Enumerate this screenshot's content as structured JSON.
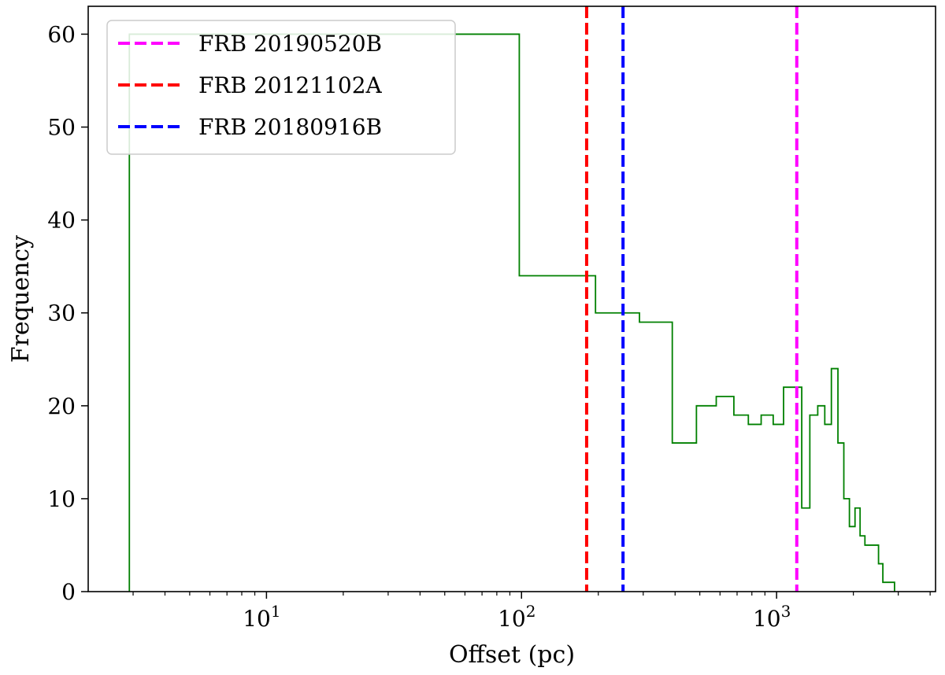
{
  "chart_data": {
    "type": "histogram",
    "xlabel": "Offset (pc)",
    "ylabel": "Frequency",
    "xscale": "log",
    "xlim": [
      2.0,
      4200
    ],
    "ylim": [
      0,
      63
    ],
    "x_ticks": [
      {
        "value": 10,
        "base": "10",
        "exp": "1"
      },
      {
        "value": 100,
        "base": "10",
        "exp": "2"
      },
      {
        "value": 1000,
        "base": "10",
        "exp": "3"
      }
    ],
    "y_ticks": [
      0,
      10,
      20,
      30,
      40,
      50,
      60
    ],
    "grid": false,
    "legend_position": "top-left",
    "histogram": {
      "color": "#008000",
      "bins": [
        {
          "x0": 2.9,
          "x1": 98,
          "count": 60
        },
        {
          "x0": 98,
          "x1": 195,
          "count": 34
        },
        {
          "x0": 195,
          "x1": 290,
          "count": 30
        },
        {
          "x0": 290,
          "x1": 390,
          "count": 29
        },
        {
          "x0": 390,
          "x1": 485,
          "count": 16
        },
        {
          "x0": 485,
          "x1": 580,
          "count": 20
        },
        {
          "x0": 580,
          "x1": 680,
          "count": 21
        },
        {
          "x0": 680,
          "x1": 775,
          "count": 19
        },
        {
          "x0": 775,
          "x1": 870,
          "count": 18
        },
        {
          "x0": 870,
          "x1": 970,
          "count": 19
        },
        {
          "x0": 970,
          "x1": 1065,
          "count": 18
        },
        {
          "x0": 1065,
          "x1": 1255,
          "count": 22
        },
        {
          "x0": 1255,
          "x1": 1350,
          "count": 9
        },
        {
          "x0": 1350,
          "x1": 1450,
          "count": 19
        },
        {
          "x0": 1450,
          "x1": 1545,
          "count": 20
        },
        {
          "x0": 1545,
          "x1": 1640,
          "count": 18
        },
        {
          "x0": 1640,
          "x1": 1740,
          "count": 24
        },
        {
          "x0": 1740,
          "x1": 1835,
          "count": 16
        },
        {
          "x0": 1835,
          "x1": 1930,
          "count": 10
        },
        {
          "x0": 1930,
          "x1": 2030,
          "count": 7
        },
        {
          "x0": 2030,
          "x1": 2125,
          "count": 9
        },
        {
          "x0": 2125,
          "x1": 2220,
          "count": 6
        },
        {
          "x0": 2220,
          "x1": 2320,
          "count": 5
        },
        {
          "x0": 2320,
          "x1": 2510,
          "count": 5
        },
        {
          "x0": 2510,
          "x1": 2610,
          "count": 3
        },
        {
          "x0": 2610,
          "x1": 2900,
          "count": 1
        }
      ]
    },
    "vlines": [
      {
        "label": "FRB 20190520B",
        "x": 1200,
        "color": "#ff00ff"
      },
      {
        "label": "FRB 20121102A",
        "x": 180,
        "color": "#ff0000"
      },
      {
        "label": "FRB 20180916B",
        "x": 250,
        "color": "#0000ff"
      }
    ]
  }
}
